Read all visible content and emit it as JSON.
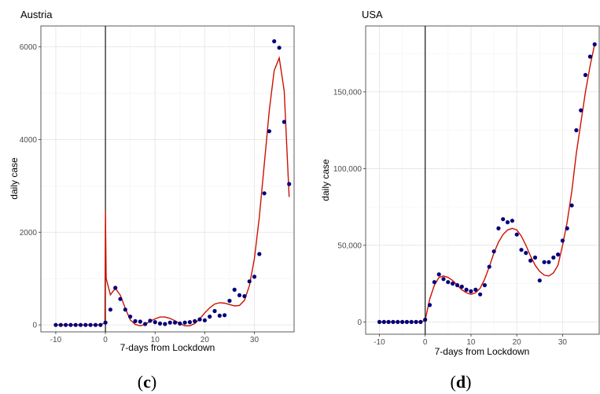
{
  "chart_data": [
    {
      "type": "scatter",
      "title": "Austria",
      "xlabel": "7-days from Lockdown",
      "ylabel": "daily case",
      "xlim": [
        -13,
        38
      ],
      "ylim": [
        -150,
        6450
      ],
      "xticks": [
        -10,
        0,
        10,
        20,
        30
      ],
      "yticks": [
        0,
        2000,
        4000,
        6000
      ],
      "ytick_labels": [
        "0",
        "2000",
        "4000",
        "6000"
      ],
      "xtick_labels": [
        "-10",
        "0",
        "10",
        "20",
        "30"
      ],
      "grid": true,
      "vline_x": 0,
      "caption_letter": "c",
      "point_color": "#00007a",
      "fit_color": "#cc1100",
      "points": {
        "x": [
          -10,
          -9,
          -8,
          -7,
          -6,
          -5,
          -4,
          -3,
          -2,
          -1,
          0,
          1,
          2,
          3,
          4,
          5,
          6,
          7,
          8,
          9,
          10,
          11,
          12,
          13,
          14,
          15,
          16,
          17,
          18,
          19,
          20,
          21,
          22,
          23,
          24,
          25,
          26,
          27,
          28,
          29,
          30,
          31,
          32,
          33,
          34,
          35,
          36,
          37
        ],
        "y": [
          0,
          0,
          0,
          0,
          0,
          0,
          0,
          0,
          0,
          0,
          50,
          330,
          800,
          560,
          330,
          180,
          80,
          70,
          20,
          90,
          60,
          30,
          20,
          50,
          50,
          30,
          50,
          60,
          80,
          120,
          100,
          180,
          300,
          200,
          210,
          520,
          760,
          640,
          620,
          940,
          1040,
          1530,
          2840,
          4180,
          6120,
          5980,
          4380,
          3040
        ]
      },
      "fit": {
        "x": [
          -10,
          -1,
          -0.1,
          0,
          0.15,
          1,
          2,
          3,
          4,
          5,
          6,
          7,
          8,
          9,
          10,
          11,
          12,
          13,
          14,
          15,
          16,
          17,
          18,
          19,
          20,
          21,
          22,
          23,
          24,
          25,
          26,
          27,
          28,
          29,
          30,
          31,
          32,
          33,
          34,
          35,
          36,
          37
        ],
        "y": [
          0,
          0,
          50,
          2450,
          1000,
          650,
          790,
          640,
          360,
          110,
          10,
          -20,
          10,
          80,
          130,
          170,
          170,
          140,
          90,
          30,
          -20,
          -20,
          30,
          130,
          260,
          370,
          450,
          480,
          470,
          440,
          410,
          420,
          530,
          850,
          1430,
          2330,
          3470,
          4620,
          5490,
          5760,
          5050,
          2760
        ]
      }
    },
    {
      "type": "scatter",
      "title": "USA",
      "xlabel": "7-days from Lockdown",
      "ylabel": "daily case",
      "xlim": [
        -13,
        38
      ],
      "ylim": [
        -8000,
        193000
      ],
      "xticks": [
        -10,
        0,
        10,
        20,
        30
      ],
      "yticks": [
        0,
        50000,
        100000,
        150000
      ],
      "ytick_labels": [
        "0",
        "50,000",
        "100,000",
        "150,000"
      ],
      "xtick_labels": [
        "-10",
        "0",
        "10",
        "20",
        "30"
      ],
      "grid": true,
      "vline_x": 0,
      "caption_letter": "d",
      "point_color": "#00007a",
      "fit_color": "#cc1100",
      "points": {
        "x": [
          -10,
          -9,
          -8,
          -7,
          -6,
          -5,
          -4,
          -3,
          -2,
          -1,
          0,
          1,
          2,
          3,
          4,
          5,
          6,
          7,
          8,
          9,
          10,
          11,
          12,
          13,
          14,
          15,
          16,
          17,
          18,
          19,
          20,
          21,
          22,
          23,
          24,
          25,
          26,
          27,
          28,
          29,
          30,
          31,
          32,
          33,
          34,
          35,
          36,
          37
        ],
        "y": [
          0,
          0,
          0,
          0,
          0,
          0,
          0,
          0,
          0,
          0,
          1500,
          11000,
          26000,
          31000,
          28000,
          26000,
          25000,
          24000,
          23000,
          21000,
          20000,
          21000,
          18000,
          24000,
          36000,
          46000,
          61000,
          67000,
          65000,
          66000,
          57000,
          47000,
          45000,
          40000,
          42000,
          27000,
          39000,
          39000,
          42000,
          44000,
          53000,
          61000,
          76000,
          125000,
          138000,
          161000,
          173000,
          181000
        ]
      },
      "fit": {
        "x": [
          -10,
          -1,
          0,
          1,
          2,
          3,
          4,
          5,
          6,
          7,
          8,
          9,
          10,
          11,
          12,
          13,
          14,
          15,
          16,
          17,
          18,
          19,
          20,
          21,
          22,
          23,
          24,
          25,
          26,
          27,
          28,
          29,
          30,
          31,
          32,
          33,
          34,
          35,
          36,
          37
        ],
        "y": [
          0,
          0,
          1000,
          15000,
          24000,
          29000,
          30000,
          29000,
          27000,
          24000,
          21000,
          19000,
          18000,
          19000,
          22000,
          28000,
          36000,
          45000,
          52000,
          57000,
          60000,
          61000,
          60000,
          56000,
          50000,
          43000,
          37000,
          33000,
          30500,
          30000,
          32000,
          37000,
          50000,
          65000,
          85000,
          110000,
          130000,
          150000,
          167000,
          181000
        ]
      }
    }
  ]
}
